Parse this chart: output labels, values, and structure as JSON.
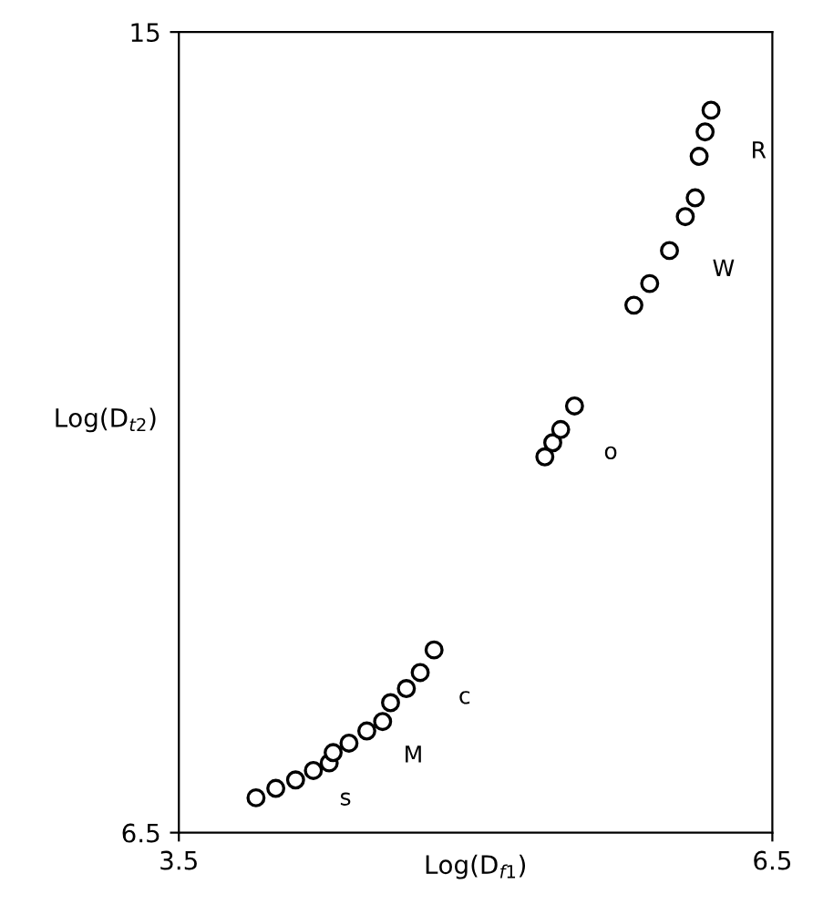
{
  "chart_data": {
    "type": "scatter",
    "xlabel": "Log(D$_{f1}$)",
    "ylabel": "Log(D$_{t2}$)",
    "xlim": [
      3.5,
      6.5
    ],
    "ylim": [
      6.5,
      15
    ],
    "xticks": [
      3.5,
      6.5
    ],
    "yticks": [
      6.5,
      15
    ],
    "grid": false,
    "marker": "circle",
    "series": [
      {
        "name": "s",
        "color": "#000000",
        "x": [
          3.89,
          3.99,
          4.09,
          4.18,
          4.26
        ],
        "values": [
          6.87,
          6.97,
          7.06,
          7.16,
          7.24
        ]
      },
      {
        "name": "M",
        "color": "#000000",
        "x": [
          4.28,
          4.36,
          4.45,
          4.53
        ],
        "values": [
          7.35,
          7.45,
          7.58,
          7.68
        ]
      },
      {
        "name": "c",
        "color": "#000000",
        "x": [
          4.57,
          4.65,
          4.72,
          4.79
        ],
        "values": [
          7.88,
          8.03,
          8.2,
          8.44
        ]
      },
      {
        "name": "o",
        "color": "#000000",
        "x": [
          5.35,
          5.39,
          5.43,
          5.5
        ],
        "values": [
          10.49,
          10.64,
          10.78,
          11.03
        ]
      },
      {
        "name": "W",
        "color": "#000000",
        "x": [
          5.8,
          5.88,
          5.98,
          6.06,
          6.11
        ],
        "values": [
          12.1,
          12.33,
          12.68,
          13.04,
          13.24
        ]
      },
      {
        "name": "R",
        "color": "#000000",
        "x": [
          6.13,
          6.16,
          6.19
        ],
        "values": [
          13.68,
          13.94,
          14.17
        ]
      }
    ]
  }
}
